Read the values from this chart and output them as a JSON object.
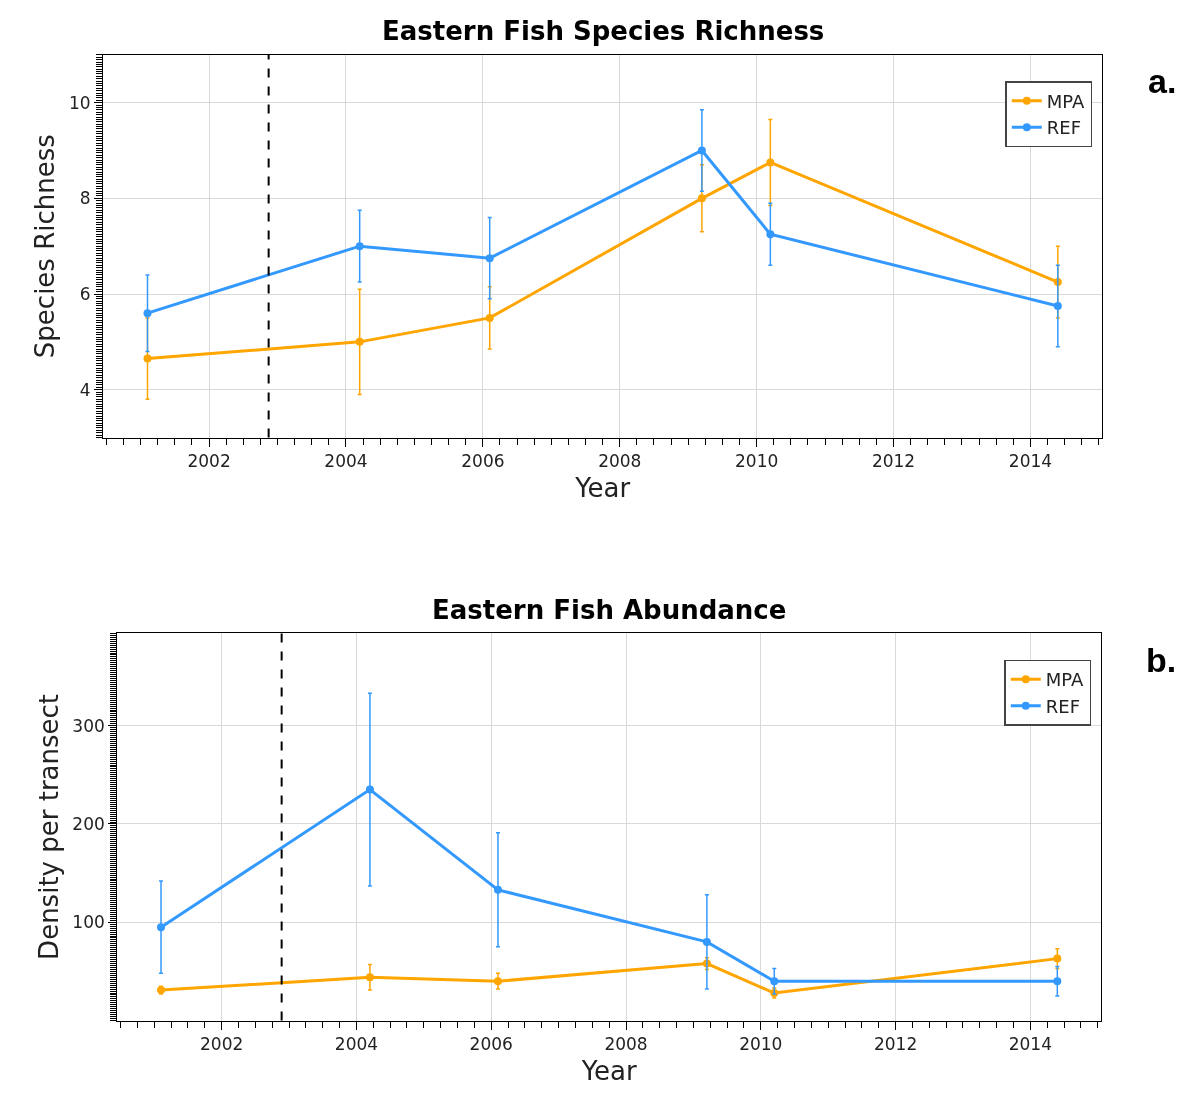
{
  "chart_data": [
    {
      "type": "line",
      "title": "Eastern Fish Species Richness",
      "xlabel": "Year",
      "ylabel": "Species Richness",
      "xlim": [
        2000.45,
        2015.05
      ],
      "xticks": [
        2002,
        2004,
        2006,
        2008,
        2010,
        2012,
        2014
      ],
      "ylim": [
        3,
        11
      ],
      "yticks": [
        4,
        6,
        8,
        10
      ],
      "grid": true,
      "legend": "top right",
      "marker": "circle",
      "line_style": "solid",
      "series": [
        {
          "name": "MPA",
          "color": "#ffa500",
          "x": [
            2001.1,
            2004.2,
            2006.1,
            2009.2,
            2010.2,
            2014.4
          ],
          "values": [
            4.65,
            5.0,
            5.5,
            8.0,
            8.75,
            6.25
          ],
          "errors": [
            0.85,
            1.1,
            0.65,
            0.7,
            0.9,
            0.75
          ]
        },
        {
          "name": "REF",
          "color": "#3399ff",
          "x": [
            2001.1,
            2004.2,
            2006.1,
            2009.2,
            2010.2,
            2014.4
          ],
          "values": [
            5.6,
            7.0,
            6.75,
            9.0,
            7.25,
            5.75
          ],
          "errors": [
            0.8,
            0.75,
            0.85,
            0.85,
            0.65,
            0.85
          ]
        }
      ],
      "ref_lines": [
        {
          "axis": "x",
          "value": 2002.87,
          "color": "#000000",
          "line_style": "dashed"
        }
      ],
      "annotations": [
        "a."
      ]
    },
    {
      "type": "line",
      "title": "Eastern Fish Abundance",
      "xlabel": "Year",
      "ylabel": "Density per transect",
      "xlim": [
        2000.45,
        2015.05
      ],
      "xticks": [
        2002,
        2004,
        2006,
        2008,
        2010,
        2012,
        2014
      ],
      "ylim": [
        0,
        394
      ],
      "yticks": [
        100,
        200,
        300
      ],
      "grid": true,
      "legend": "top right",
      "marker": "circle",
      "line_style": "solid",
      "series": [
        {
          "name": "MPA",
          "color": "#ffa500",
          "x": [
            2001.1,
            2004.2,
            2006.1,
            2009.2,
            2010.2,
            2014.4
          ],
          "values": [
            31,
            44,
            40,
            58,
            28,
            63
          ],
          "errors": [
            4,
            13,
            8,
            6,
            5,
            10
          ]
        },
        {
          "name": "REF",
          "color": "#3399ff",
          "x": [
            2001.1,
            2004.2,
            2006.1,
            2009.2,
            2010.2,
            2014.4
          ],
          "values": [
            95,
            235,
            133,
            80,
            40,
            40
          ],
          "errors": [
            47,
            98,
            58,
            48,
            13,
            15
          ]
        }
      ],
      "ref_lines": [
        {
          "axis": "x",
          "value": 2002.89,
          "color": "#000000",
          "line_style": "dashed"
        }
      ],
      "annotations": [
        "b."
      ]
    }
  ]
}
